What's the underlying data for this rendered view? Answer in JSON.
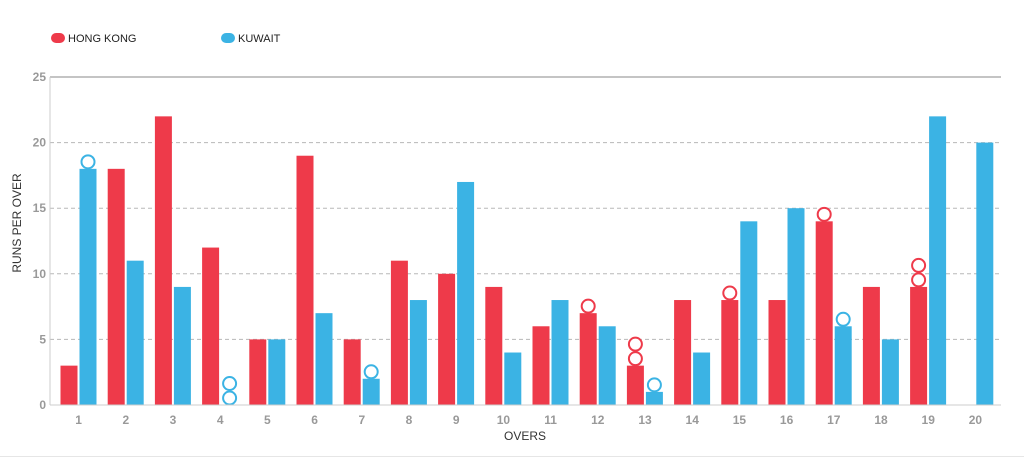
{
  "chart_data": {
    "type": "bar",
    "xlabel": "OVERS",
    "ylabel": "RUNS PER OVER",
    "ylim": [
      0,
      25
    ],
    "yticks": [
      0,
      5,
      10,
      15,
      20,
      25
    ],
    "grid": "horizontal-dashed",
    "legend_position": "top-left",
    "categories": [
      "1",
      "2",
      "3",
      "4",
      "5",
      "6",
      "7",
      "8",
      "9",
      "10",
      "11",
      "12",
      "13",
      "14",
      "15",
      "16",
      "17",
      "18",
      "19",
      "20"
    ],
    "series": [
      {
        "name": "HONG KONG",
        "color": "#ee3a4a",
        "values": [
          3,
          18,
          22,
          12,
          5,
          19,
          5,
          11,
          10,
          9,
          6,
          7,
          3,
          8,
          8,
          8,
          14,
          9,
          9,
          null
        ],
        "wickets": [
          0,
          0,
          0,
          0,
          0,
          0,
          0,
          0,
          0,
          0,
          0,
          1,
          2,
          0,
          1,
          0,
          1,
          0,
          2,
          0
        ]
      },
      {
        "name": "KUWAIT",
        "color": "#3bb3e4",
        "values": [
          18,
          11,
          9,
          0,
          5,
          7,
          2,
          8,
          17,
          4,
          8,
          6,
          1,
          4,
          14,
          15,
          6,
          5,
          22,
          20
        ],
        "wickets": [
          1,
          0,
          0,
          2,
          0,
          0,
          1,
          0,
          0,
          0,
          0,
          0,
          1,
          0,
          0,
          0,
          1,
          0,
          0,
          0
        ]
      }
    ]
  }
}
